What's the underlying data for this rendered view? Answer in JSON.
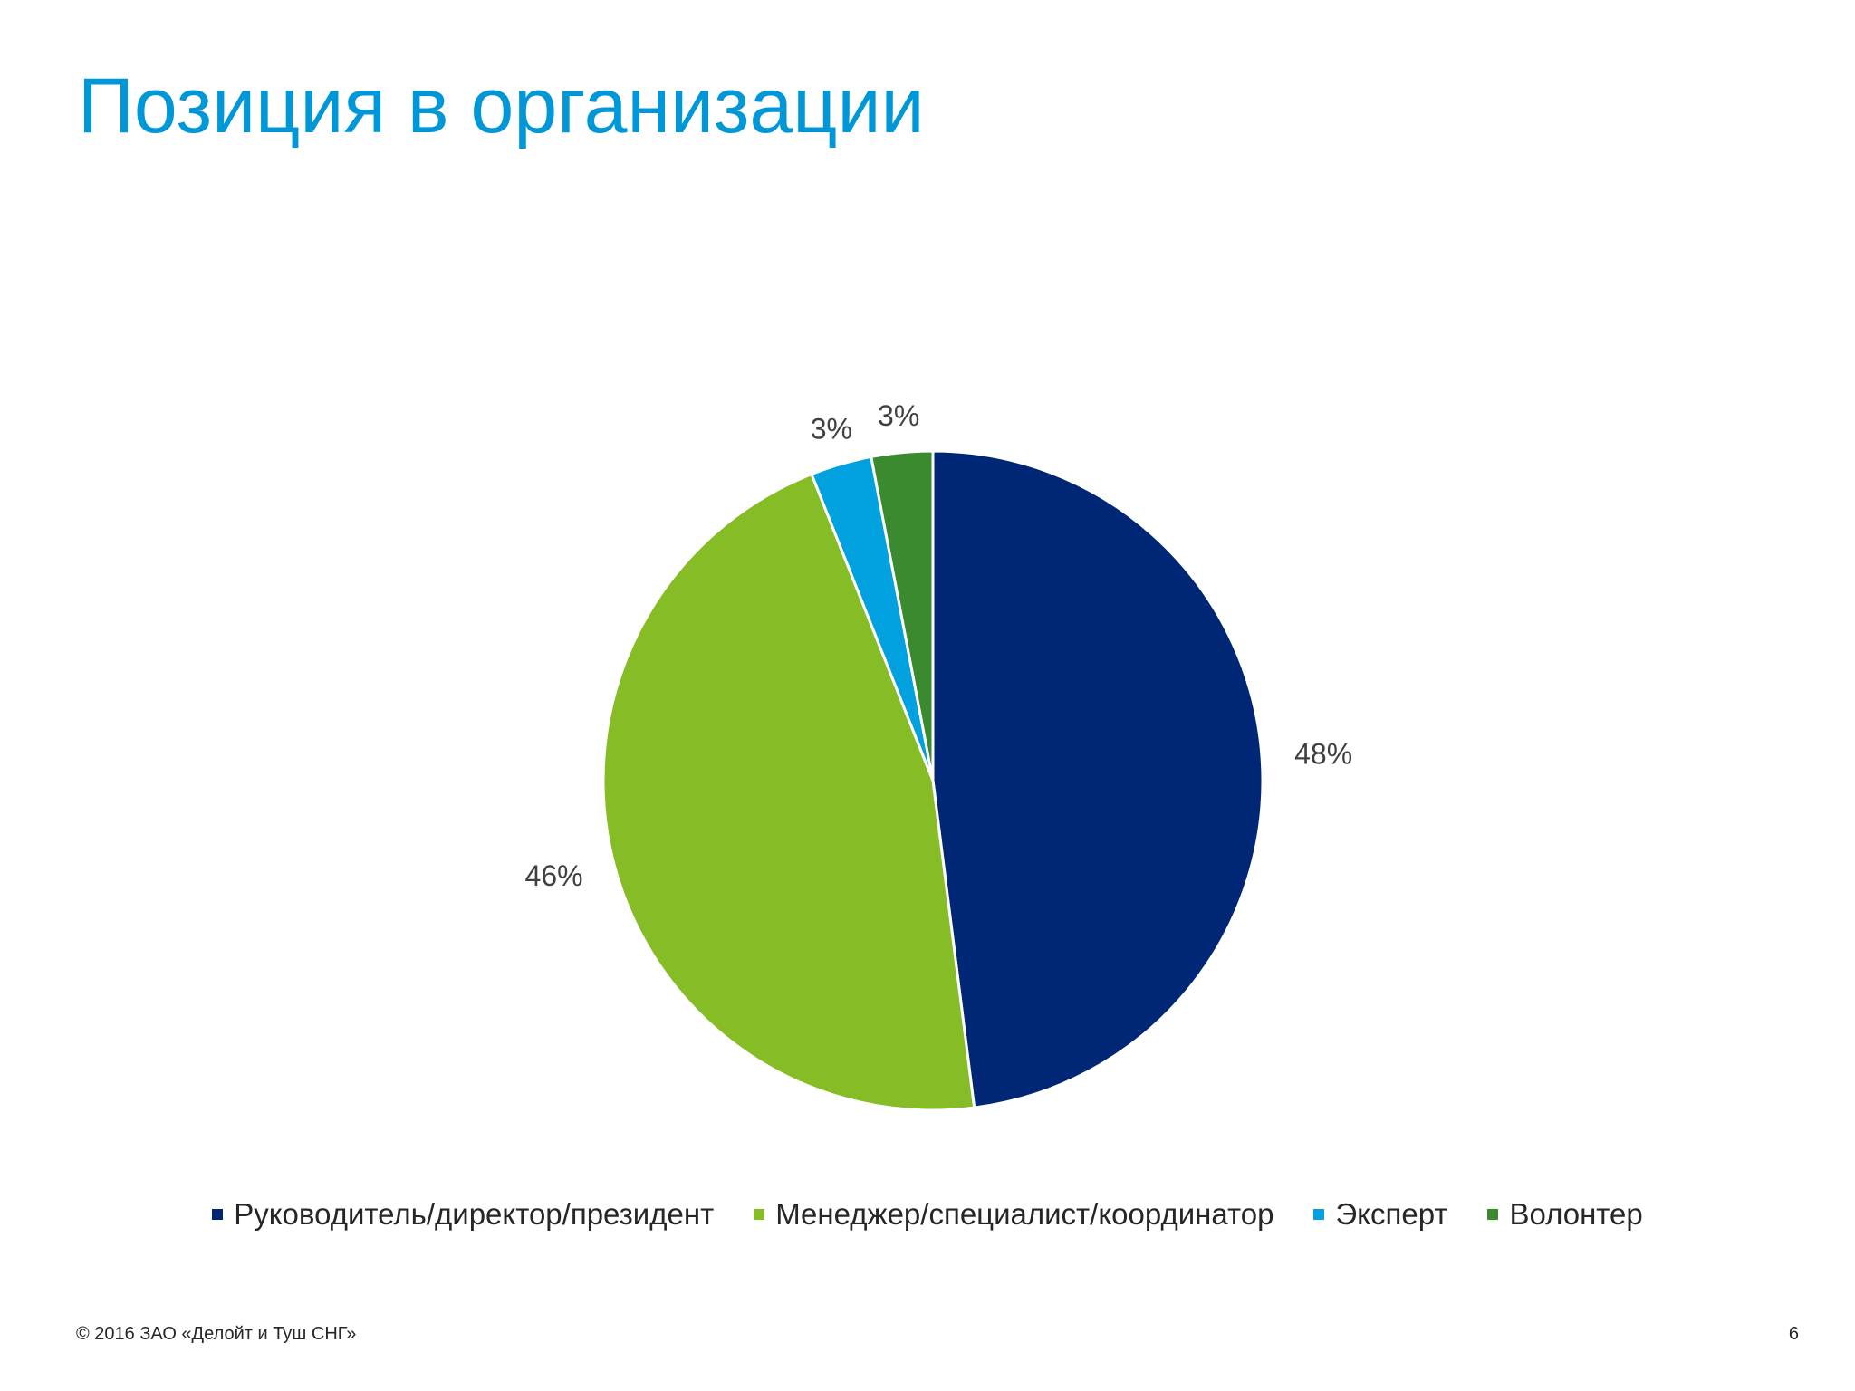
{
  "slide": {
    "title": "Позиция в организации",
    "footer_copyright": "© 2016 ЗАО «Делойт и Туш СНГ»",
    "page_number": "6"
  },
  "chart_data": {
    "type": "pie",
    "title": "",
    "start_angle_deg": 0,
    "direction": "clockwise",
    "slices": [
      {
        "label": "Руководитель/директор/президент",
        "value": 48,
        "display": "48%",
        "color": "#002776"
      },
      {
        "label": "Менеджер/специалист/координатор",
        "value": 46,
        "display": "46%",
        "color": "#86bc25"
      },
      {
        "label": "Эксперт",
        "value": 3,
        "display": "3%",
        "color": "#00a1de"
      },
      {
        "label": "Волонтер",
        "value": 3,
        "display": "3%",
        "color": "#3b8a2f"
      }
    ],
    "legend_position": "bottom"
  }
}
